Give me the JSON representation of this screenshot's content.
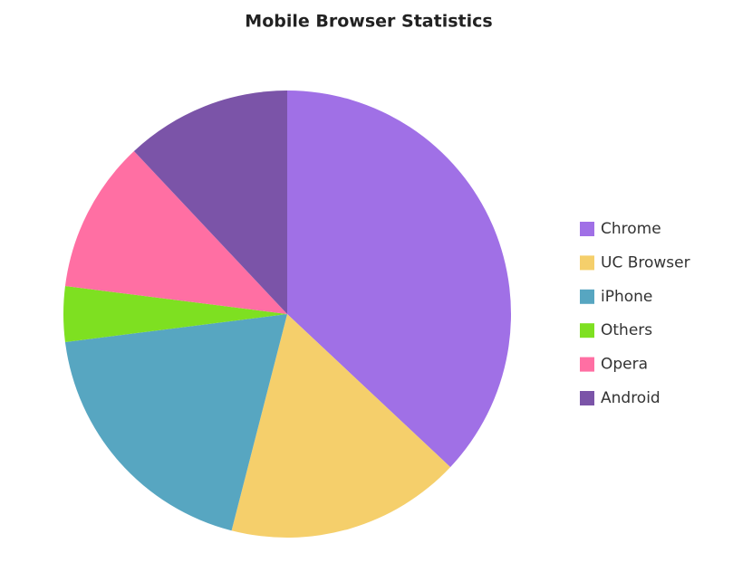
{
  "chart_data": {
    "type": "pie",
    "title": "Mobile Browser Statistics",
    "categories": [
      "Chrome",
      "UC Browser",
      "iPhone",
      "Others",
      "Opera",
      "Android"
    ],
    "values": [
      37,
      17,
      19,
      4,
      11,
      12
    ],
    "colors": [
      "#a070e6",
      "#f5cf6b",
      "#57a6c1",
      "#7ee021",
      "#ff6fa3",
      "#7b54a8"
    ],
    "legend": "right"
  }
}
